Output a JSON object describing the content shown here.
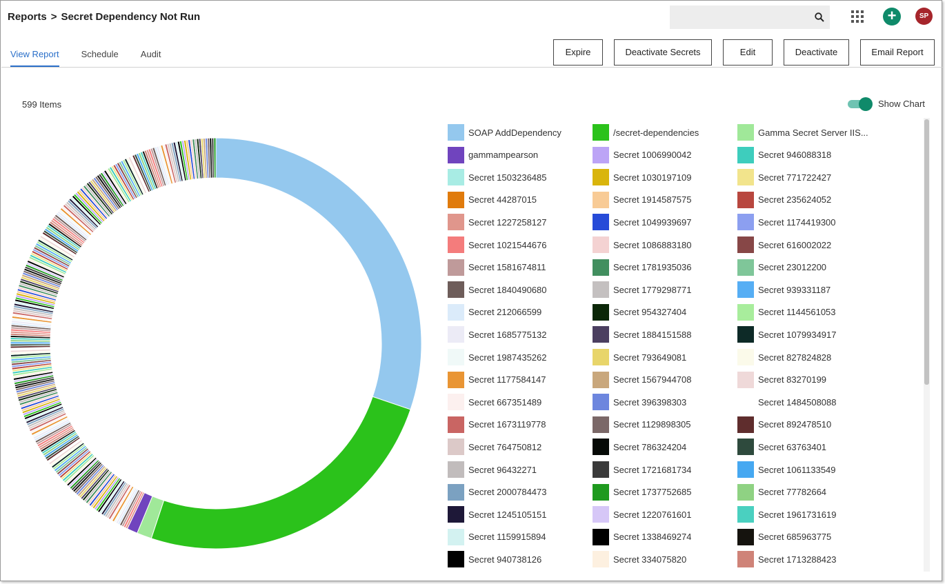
{
  "breadcrumb": {
    "root": "Reports",
    "separator": ">",
    "current": "Secret Dependency Not Run"
  },
  "header": {
    "search_icon": "search-icon",
    "apps_icon": "apps-grid-icon",
    "add_label": "+",
    "avatar_initials": "SP"
  },
  "tabs": [
    {
      "label": "View Report",
      "active": true
    },
    {
      "label": "Schedule",
      "active": false
    },
    {
      "label": "Audit",
      "active": false
    }
  ],
  "actions": {
    "expire": "Expire",
    "deactivate_secrets": "Deactivate Secrets",
    "edit": "Edit",
    "deactivate": "Deactivate",
    "email_report": "Email Report"
  },
  "report": {
    "item_count": "599 Items",
    "show_chart_label": "Show Chart",
    "show_chart_on": true
  },
  "chart_data": {
    "type": "pie",
    "donut": true,
    "total_items": 599,
    "major_slices": [
      {
        "label": "SOAP AddDependency",
        "value": 181,
        "color": "#94c8ee"
      },
      {
        "label": "/secret-dependencies",
        "value": 149,
        "color": "#2bc21b"
      },
      {
        "label": "Gamma Secret Server IIS...",
        "value": 7,
        "color": "#a0e899"
      },
      {
        "label": "gammampearson",
        "value": 5,
        "color": "#7044be"
      }
    ],
    "minor_slice_value": 1,
    "minor_slice_count": 257
  },
  "legend": [
    [
      {
        "label": "SOAP AddDependency",
        "color": "#94c8ee"
      },
      {
        "label": "gammampearson",
        "color": "#7044be"
      },
      {
        "label": "Secret 1503236485",
        "color": "#a8ece4"
      },
      {
        "label": "Secret 44287015",
        "color": "#e07b0c"
      },
      {
        "label": "Secret 1227258127",
        "color": "#e0968c"
      },
      {
        "label": "Secret 1021544676",
        "color": "#f47c7c"
      },
      {
        "label": "Secret 1581674811",
        "color": "#bf9a9a"
      },
      {
        "label": "Secret 1840490680",
        "color": "#6e5d5a"
      },
      {
        "label": "Secret 212066599",
        "color": "#dbebfa"
      },
      {
        "label": "Secret 1685775132",
        "color": "#ecebf6"
      },
      {
        "label": "Secret 1987435262",
        "color": "#f0f9f8"
      },
      {
        "label": "Secret 1177584147",
        "color": "#e99534"
      },
      {
        "label": "Secret 667351489",
        "color": "#fcf0ef"
      },
      {
        "label": "Secret 1673119778",
        "color": "#c96563"
      },
      {
        "label": "Secret 764750812",
        "color": "#dcc9c8"
      },
      {
        "label": "Secret 96432271",
        "color": "#c1bcbc"
      },
      {
        "label": "Secret 2000784473",
        "color": "#7ba1c1"
      },
      {
        "label": "Secret 1245105151",
        "color": "#1e1838"
      },
      {
        "label": "Secret 1159915894",
        "color": "#d3f2f1"
      },
      {
        "label": "Secret 940738126",
        "color": "#000000"
      }
    ],
    [
      {
        "label": "/secret-dependencies",
        "color": "#2bc21b"
      },
      {
        "label": "Secret 1006990042",
        "color": "#bca4f6"
      },
      {
        "label": "Secret 1030197109",
        "color": "#d9b50c"
      },
      {
        "label": "Secret 1914587575",
        "color": "#f8cb96"
      },
      {
        "label": "Secret 1049939697",
        "color": "#274bd8"
      },
      {
        "label": "Secret 1086883180",
        "color": "#f4d2d2"
      },
      {
        "label": "Secret 1781935036",
        "color": "#428f5f"
      },
      {
        "label": "Secret 1779298771",
        "color": "#c4c0c0"
      },
      {
        "label": "Secret 954327404",
        "color": "#0b2708"
      },
      {
        "label": "Secret 1884151588",
        "color": "#4b3f60"
      },
      {
        "label": "Secret 793649081",
        "color": "#e8d56a"
      },
      {
        "label": "Secret 1567944708",
        "color": "#c9a77c"
      },
      {
        "label": "Secret 396398303",
        "color": "#6d86de"
      },
      {
        "label": "Secret 1129898305",
        "color": "#7b6868"
      },
      {
        "label": "Secret 786324204",
        "color": "#060a07"
      },
      {
        "label": "Secret 1721681734",
        "color": "#3a3a3a"
      },
      {
        "label": "Secret 1737752685",
        "color": "#1e9a1e"
      },
      {
        "label": "Secret 1220761601",
        "color": "#d6c7f7"
      },
      {
        "label": "Secret 1338469274",
        "color": "#000000"
      },
      {
        "label": "Secret 334075820",
        "color": "#fdf0e0"
      }
    ],
    [
      {
        "label": "Gamma Secret Server IIS...",
        "color": "#a0e899"
      },
      {
        "label": "Secret 946088318",
        "color": "#3ecdbd"
      },
      {
        "label": "Secret 771722427",
        "color": "#f2e48c"
      },
      {
        "label": "Secret 235624052",
        "color": "#b8473f"
      },
      {
        "label": "Secret 1174419300",
        "color": "#8c9ff0"
      },
      {
        "label": "Secret 616002022",
        "color": "#874747"
      },
      {
        "label": "Secret 23012200",
        "color": "#7fc699"
      },
      {
        "label": "Secret 939331187",
        "color": "#56aef4"
      },
      {
        "label": "Secret 1144561053",
        "color": "#a8ed9c"
      },
      {
        "label": "Secret 1079934917",
        "color": "#0d2a27"
      },
      {
        "label": "Secret 827824828",
        "color": "#fbfaea"
      },
      {
        "label": "Secret 83270199",
        "color": "#efd9d9"
      },
      {
        "label": "Secret 1484508088",
        "color": "#ffffff"
      },
      {
        "label": "Secret 892478510",
        "color": "#5f2d2d"
      },
      {
        "label": "Secret 63763401",
        "color": "#2e4a3d"
      },
      {
        "label": "Secret 1061133549",
        "color": "#46a8f1"
      },
      {
        "label": "Secret 77782664",
        "color": "#8fd283"
      },
      {
        "label": "Secret 1961731619",
        "color": "#4ad0c0"
      },
      {
        "label": "Secret 685963775",
        "color": "#15130e"
      },
      {
        "label": "Secret 1713288423",
        "color": "#cf8378"
      }
    ]
  ]
}
